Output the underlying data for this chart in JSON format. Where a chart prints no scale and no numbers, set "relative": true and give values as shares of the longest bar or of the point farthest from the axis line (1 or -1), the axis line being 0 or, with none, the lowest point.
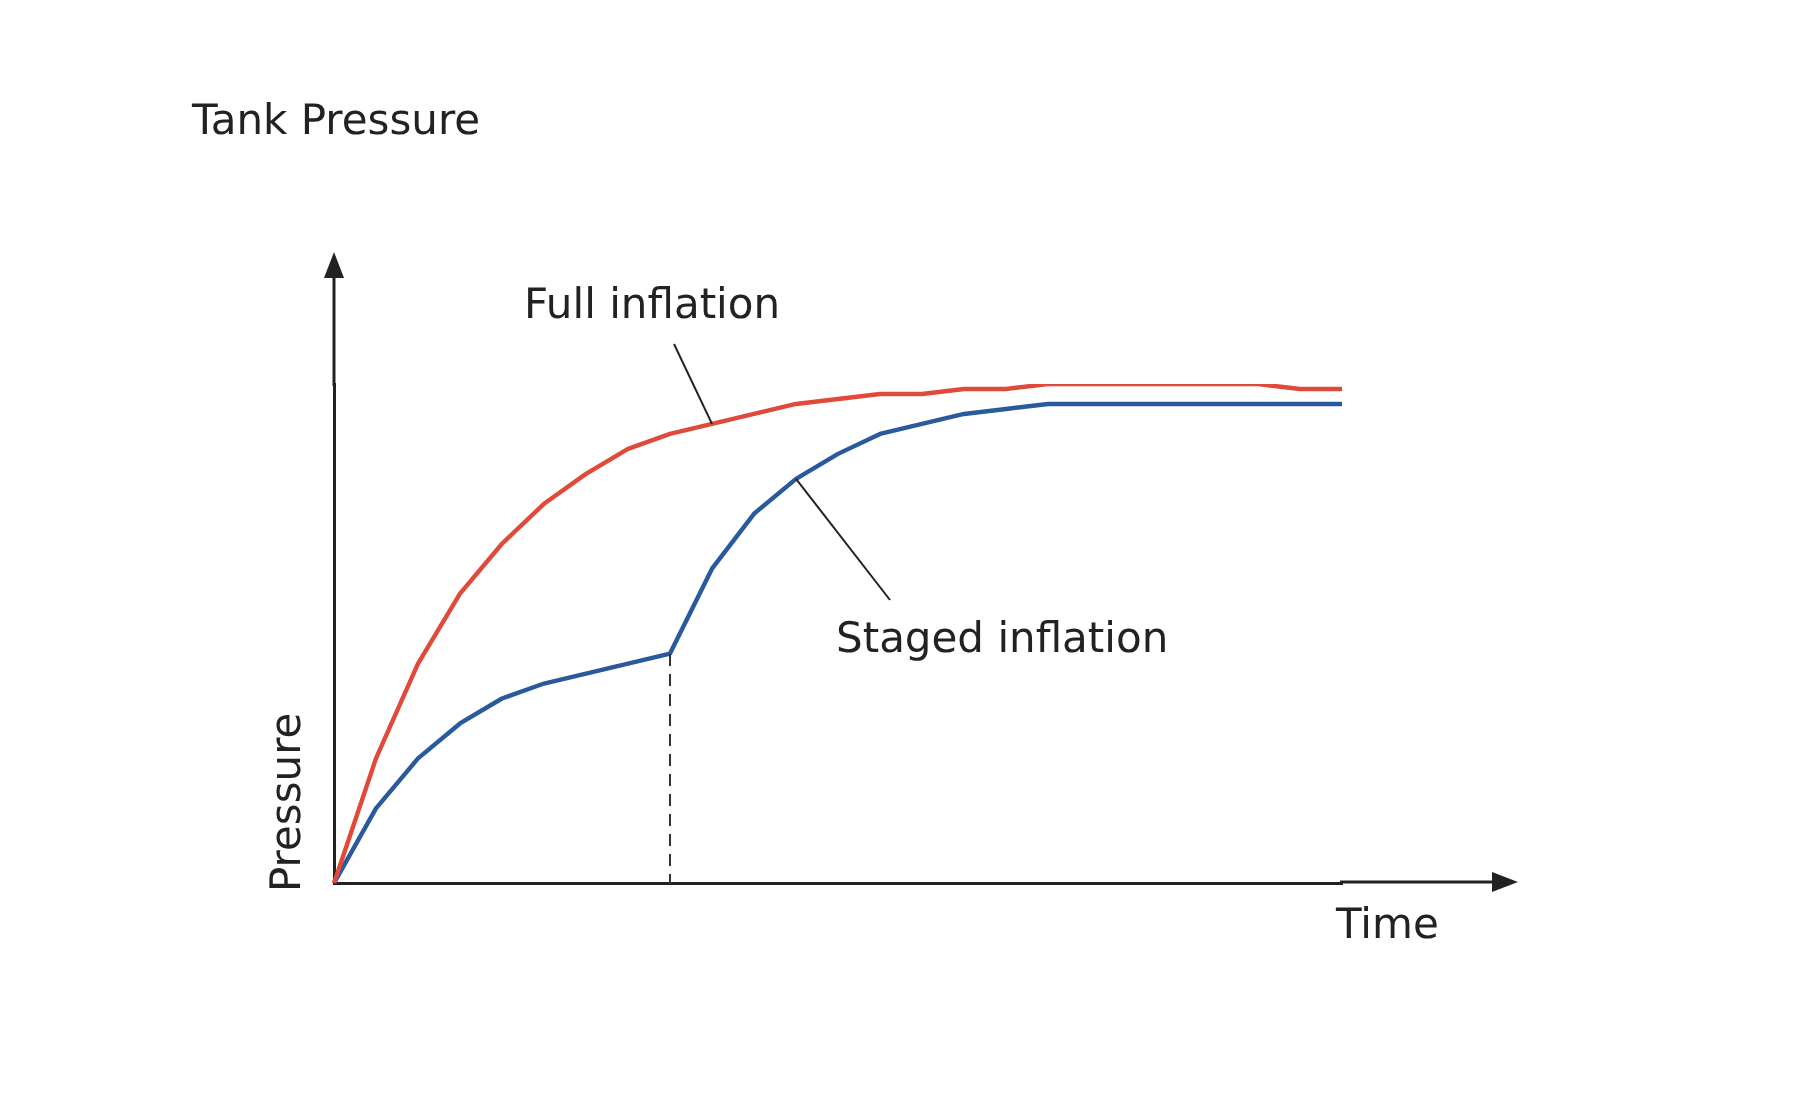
{
  "chart_data": {
    "type": "line",
    "title": "Tank Pressure",
    "xlabel": "Time",
    "ylabel": "Pressure",
    "relative": true,
    "legend": false,
    "grid": false,
    "marker": "none",
    "line_style": "solid",
    "categories": [
      null,
      null,
      null,
      null,
      null,
      null,
      null,
      null,
      null,
      null,
      null,
      null,
      null,
      null,
      null,
      null,
      null,
      null,
      null,
      null,
      null,
      null,
      null,
      null,
      null
    ],
    "series": [
      {
        "color": "#e04a3a",
        "values": [
          0,
          0.25,
          0.44,
          0.58,
          0.68,
          0.76,
          0.82,
          0.87,
          0.9,
          0.92,
          0.94,
          0.96,
          0.97,
          0.98,
          0.98,
          0.99,
          0.99,
          1,
          1,
          1,
          1,
          1,
          1,
          0.99,
          0.99
        ]
      },
      {
        "color": "#2a5a9e",
        "values": [
          0,
          0.15,
          0.25,
          0.32,
          0.37,
          0.4,
          0.42,
          0.44,
          0.46,
          0.63,
          0.74,
          0.81,
          0.86,
          0.9,
          0.92,
          0.94,
          0.95,
          0.96,
          0.96,
          0.96,
          0.96,
          0.96,
          0.96,
          0.96,
          0.96
        ]
      }
    ],
    "annotations": [
      "Full inflation",
      "Staged inflation"
    ]
  }
}
